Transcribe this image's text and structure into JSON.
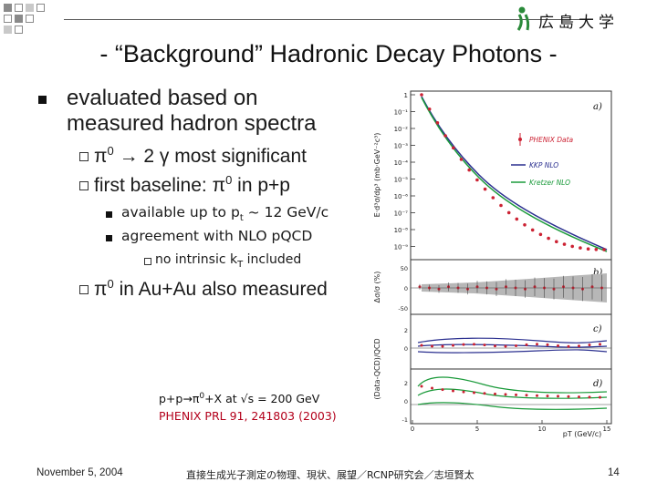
{
  "header": {
    "logo_text": "広島大学",
    "title": "- “Background” Hadronic Decay Photons -"
  },
  "content": {
    "bullet1": {
      "line1": "evaluated based on",
      "line2": "measured hadron spectra"
    },
    "sub1": {
      "pi": "π",
      "zero": "0",
      "rest": "→ 2 γ most significant"
    },
    "sub2": {
      "prefix": "first baseline:",
      "pi": "π",
      "zero": "0",
      "suffix": "in p+p"
    },
    "subsub1": {
      "prefix": "available up to p",
      "sub": "t",
      "suffix": "~ 12 GeV/c"
    },
    "subsub2": "agreement with NLO pQCD",
    "subsubsub1": {
      "prefix": "no intrinsic k",
      "sub": "T",
      "suffix": "included"
    },
    "sub3": {
      "pi": "π",
      "zero": "0",
      "rest": "in Au+Au also measured"
    },
    "reaction": {
      "prefix": "p+p→π",
      "zero": "0",
      "suffix": "+X at √s = 200 GeV"
    },
    "reference": "PHENIX PRL 91, 241803 (2003)"
  },
  "figure": {
    "yaxis_a": "E·d³σ/dp³ (mb·GeV⁻²c³)",
    "yaxis_b": "Δσ/σ (%)",
    "yaxis_cd": "(Data-QCD)/QCD",
    "xaxis": "pT (GeV/c)",
    "panel_labels": [
      "a)",
      "b)",
      "c)",
      "d)"
    ],
    "legend": [
      "PHENIX Data",
      "KKP NLO",
      "Kretzer NLO"
    ],
    "decades": [
      "1",
      "10⁻¹",
      "10⁻²",
      "10⁻³",
      "10⁻⁴",
      "10⁻⁵",
      "10⁻⁶",
      "10⁻⁷",
      "10⁻⁸",
      "10⁻⁹"
    ],
    "xticks": [
      "0",
      "5",
      "10",
      "15"
    ],
    "b_ticks": [
      "50",
      "0",
      "-50"
    ],
    "c_ticks": [
      "2",
      "0"
    ],
    "d_ticks": [
      "2",
      "0",
      "-1"
    ],
    "colors": {
      "data": "#cc2233",
      "kkp": "#2a2f8f",
      "kretzer": "#1a9a3a"
    }
  },
  "footer": {
    "date": "November 5, 2004",
    "center": "直接生成光子測定の物理、現状、展望／RCNP研究会／志垣賢太",
    "page": "14"
  },
  "colors": {
    "title": "#111111",
    "deco_gray": "#8a8a8a",
    "deco_light": "#c9c9c9"
  }
}
